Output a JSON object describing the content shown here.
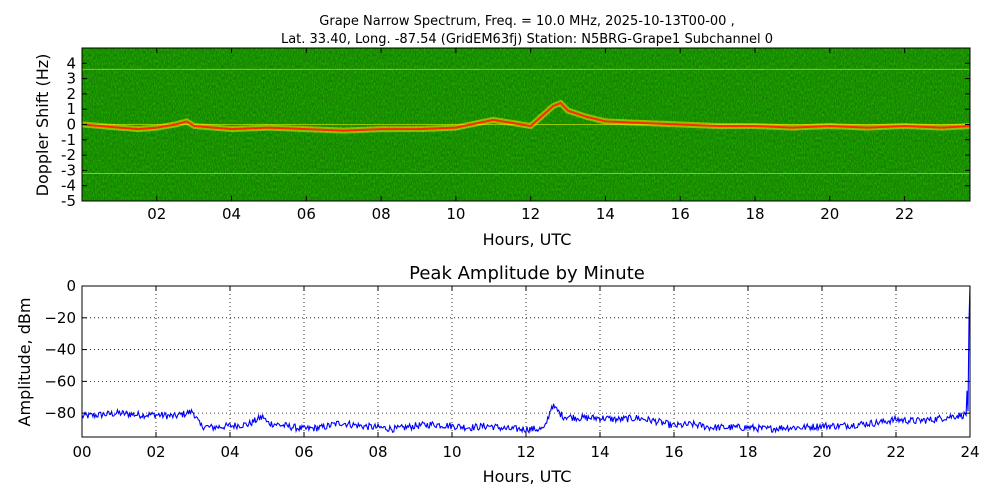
{
  "figure": {
    "title_line1": "Grape Narrow Spectrum, Freq. = 10.0 MHz, 2025-10-13T00-00 ,",
    "title_line2": "Lat.  33.40, Long. -87.54 (GridEM63fj) Station: N5BRG-Grape1 Subchannel 0"
  },
  "chart_data": [
    {
      "type": "heatmap",
      "name": "spectrogram",
      "title": "",
      "xlabel": "Hours, UTC",
      "ylabel": "Doppler Shift (Hz)",
      "xlim": [
        0,
        23.75
      ],
      "ylim": [
        -5,
        5
      ],
      "xticks": [
        2,
        4,
        6,
        8,
        10,
        12,
        14,
        16,
        18,
        20,
        22
      ],
      "xtick_labels": [
        "02",
        "04",
        "06",
        "08",
        "10",
        "12",
        "14",
        "16",
        "18",
        "20",
        "22"
      ],
      "yticks": [
        4,
        3,
        2,
        1,
        0,
        -1,
        -2,
        -3,
        -4,
        -5
      ],
      "ytick_labels": [
        "4",
        "3",
        "2",
        "1",
        "0",
        "-1",
        "-2",
        "-3",
        "-4",
        "-5"
      ],
      "background_color": "#0e7a00",
      "carrier_color": "#ff2a00",
      "doppler_trace": {
        "hours": [
          0.0,
          0.5,
          1.0,
          1.5,
          2.0,
          2.5,
          2.8,
          3.0,
          4.0,
          5.0,
          6.0,
          7.0,
          8.0,
          9.0,
          10.0,
          11.0,
          12.0,
          12.6,
          12.8,
          13.0,
          13.5,
          14.0,
          15.0,
          16.0,
          17.0,
          18.0,
          19.0,
          20.0,
          21.0,
          22.0,
          23.0,
          23.75
        ],
        "shift_hz": [
          0.0,
          -0.1,
          -0.2,
          -0.3,
          -0.2,
          0.0,
          0.2,
          -0.1,
          -0.3,
          -0.2,
          -0.3,
          -0.4,
          -0.3,
          -0.3,
          -0.2,
          0.3,
          -0.1,
          1.2,
          1.4,
          0.9,
          0.5,
          0.2,
          0.1,
          0.0,
          -0.1,
          -0.1,
          -0.2,
          -0.1,
          -0.2,
          -0.1,
          -0.2,
          -0.1
        ]
      },
      "horizontal_lines_hz": [
        3.6,
        0.0,
        -3.2
      ]
    },
    {
      "type": "line",
      "name": "peak-amplitude",
      "title": "Peak Amplitude by Minute",
      "xlabel": "Hours, UTC",
      "ylabel": "Amplitude, dBm",
      "xlim": [
        0,
        24
      ],
      "ylim": [
        -95,
        0
      ],
      "grid": true,
      "xticks": [
        0,
        2,
        4,
        6,
        8,
        10,
        12,
        14,
        16,
        18,
        20,
        22,
        24
      ],
      "xtick_labels": [
        "00",
        "02",
        "04",
        "06",
        "08",
        "10",
        "12",
        "14",
        "16",
        "18",
        "20",
        "22",
        "24"
      ],
      "yticks": [
        0,
        -20,
        -40,
        -60,
        -80
      ],
      "ytick_labels": [
        "0",
        "−20",
        "−40",
        "−60",
        "−80"
      ],
      "line_color": "#0000ff",
      "x": [
        0.0,
        0.5,
        1.0,
        1.5,
        2.0,
        2.5,
        3.0,
        3.2,
        3.5,
        4.0,
        4.5,
        4.9,
        5.0,
        5.5,
        6.0,
        6.5,
        7.0,
        7.5,
        8.0,
        8.5,
        9.0,
        9.5,
        10.0,
        10.5,
        11.0,
        11.5,
        12.0,
        12.5,
        12.7,
        13.0,
        13.5,
        14.0,
        14.5,
        15.0,
        15.5,
        16.0,
        16.5,
        17.0,
        17.5,
        18.0,
        18.5,
        19.0,
        19.5,
        20.0,
        20.5,
        21.0,
        21.5,
        22.0,
        22.5,
        23.0,
        23.5,
        23.9,
        24.0
      ],
      "y": [
        -82,
        -81,
        -80,
        -81,
        -81,
        -82,
        -79,
        -88,
        -89,
        -88,
        -87,
        -82,
        -86,
        -88,
        -90,
        -89,
        -86,
        -88,
        -89,
        -90,
        -88,
        -87,
        -88,
        -89,
        -88,
        -90,
        -90,
        -90,
        -75,
        -82,
        -83,
        -83,
        -84,
        -83,
        -85,
        -88,
        -87,
        -89,
        -89,
        -89,
        -90,
        -89,
        -89,
        -88,
        -88,
        -87,
        -86,
        -84,
        -85,
        -84,
        -82,
        -81,
        0
      ]
    }
  ]
}
